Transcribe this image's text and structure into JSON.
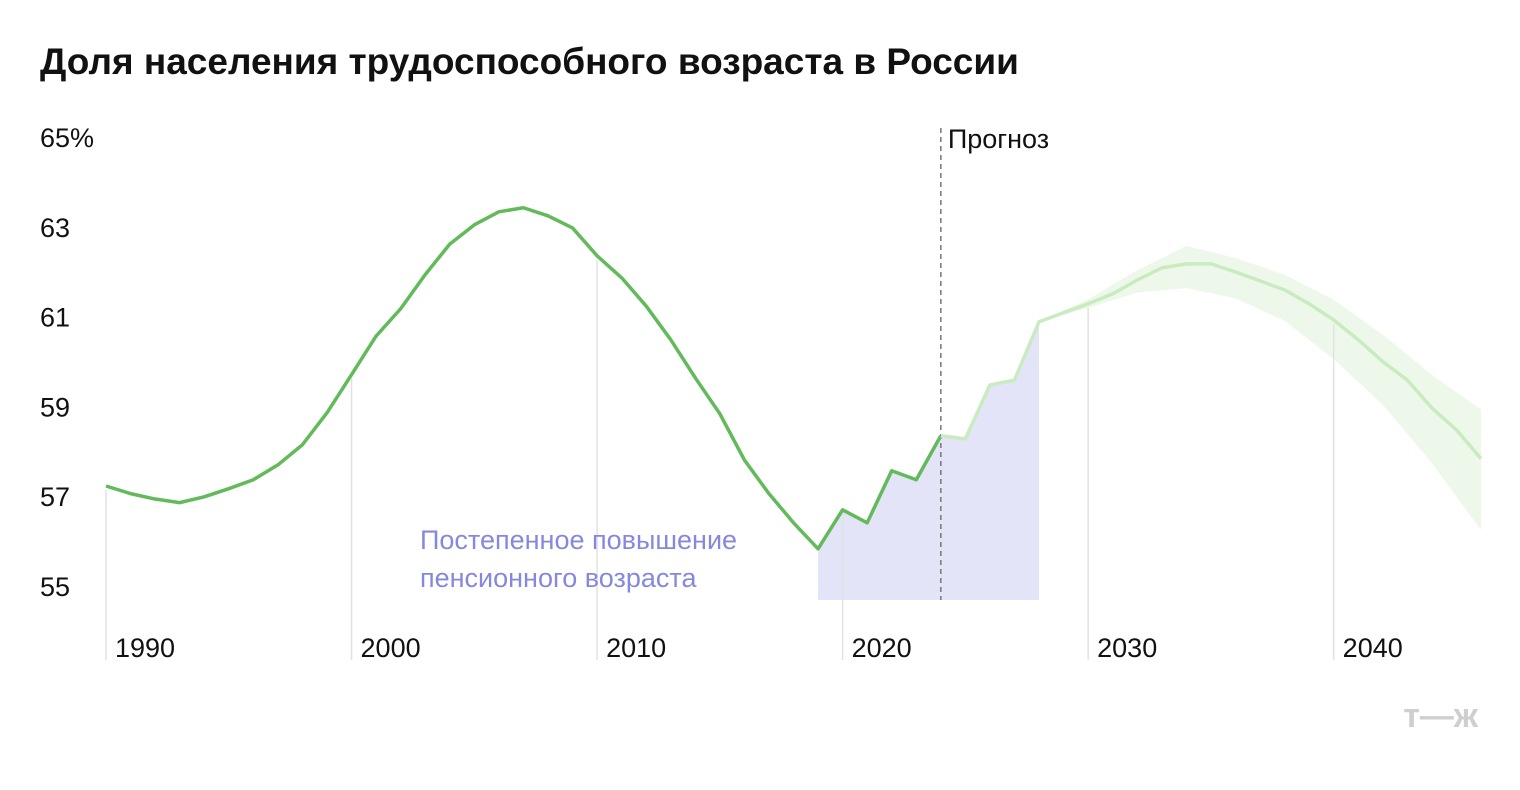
{
  "chart_data": {
    "type": "line",
    "title": "Доля населения трудоспособного возраста в России",
    "x": [
      1990,
      1991,
      1992,
      1993,
      1994,
      1995,
      1996,
      1997,
      1998,
      1999,
      2000,
      2001,
      2002,
      2003,
      2004,
      2005,
      2006,
      2007,
      2008,
      2009,
      2010,
      2011,
      2012,
      2013,
      2014,
      2015,
      2016,
      2017,
      2018,
      2019,
      2020,
      2021,
      2022,
      2023,
      2024,
      2025,
      2026,
      2027,
      2028,
      2029,
      2030,
      2031,
      2032,
      2033,
      2034,
      2035,
      2036,
      2037,
      2038,
      2039,
      2040,
      2041,
      2042,
      2043,
      2044,
      2045,
      2046
    ],
    "series": [
      {
        "color": "#63ba5b",
        "values": [
          57.29,
          57.12,
          57.0,
          56.92,
          57.05,
          57.23,
          57.43,
          57.76,
          58.21,
          58.92,
          59.77,
          60.63,
          61.24,
          62.0,
          62.68,
          63.11,
          63.4,
          63.49,
          63.31,
          63.04,
          62.42,
          61.93,
          61.3,
          60.55,
          59.7,
          58.9,
          57.87,
          57.12,
          56.47,
          55.89,
          56.76,
          56.47,
          57.63,
          57.43,
          58.41,
          null,
          null,
          null,
          null,
          null,
          null,
          null,
          null,
          null,
          null,
          null,
          null,
          null,
          null,
          null,
          null,
          null,
          null,
          null,
          null,
          null,
          null
        ]
      },
      {
        "color": "#c8ecbf",
        "values": [
          null,
          null,
          null,
          null,
          null,
          null,
          null,
          null,
          null,
          null,
          null,
          null,
          null,
          null,
          null,
          null,
          null,
          null,
          null,
          null,
          null,
          null,
          null,
          null,
          null,
          null,
          null,
          null,
          null,
          null,
          null,
          null,
          null,
          null,
          58.41,
          58.34,
          59.54,
          59.65,
          60.95,
          61.15,
          61.35,
          61.57,
          61.88,
          62.15,
          62.24,
          62.24,
          62.06,
          61.86,
          61.66,
          61.35,
          60.99,
          60.55,
          60.06,
          59.65,
          59.03,
          58.54,
          57.9
        ]
      }
    ],
    "band": {
      "color": "#eef8ea",
      "x": [
        2028,
        2030,
        2032,
        2034,
        2036,
        2038,
        2040,
        2042,
        2044,
        2046
      ],
      "upper": [
        60.95,
        61.45,
        62.1,
        62.64,
        62.37,
        62.0,
        61.44,
        60.66,
        59.77,
        58.99
      ],
      "lower": [
        60.95,
        61.26,
        61.6,
        61.7,
        61.47,
        60.97,
        60.12,
        59.1,
        57.8,
        56.31
      ]
    },
    "highlight": {
      "x": [
        2019,
        2028
      ],
      "color": "#e3e4f8",
      "label_color": "#8688de",
      "label": [
        "Постепенное повышение",
        "пенсионного возраста"
      ]
    },
    "forecast_line": {
      "x": 2024,
      "label": "Прогноз"
    },
    "xlim": [
      1990,
      2046
    ],
    "ylim": [
      54.75,
      65
    ],
    "xticks": [
      1990,
      2000,
      2010,
      2020,
      2030,
      2040
    ],
    "yticks": [
      {
        "value": 65,
        "label": "65%"
      },
      63,
      61,
      59,
      57,
      55
    ],
    "logo": "т—ж"
  }
}
